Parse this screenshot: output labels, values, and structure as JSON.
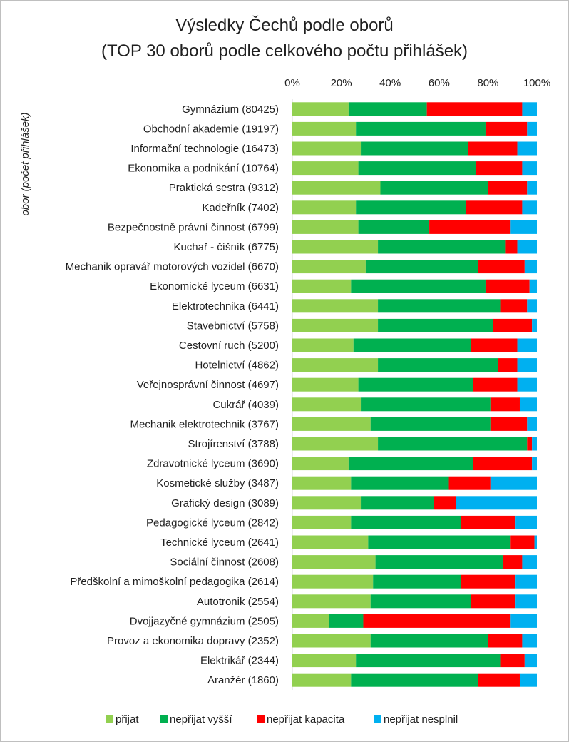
{
  "chart_data": {
    "type": "bar",
    "orientation": "horizontal",
    "stacked": "percent",
    "title_lines": [
      "Výsledky Čechů podle oborů",
      "(TOP 30 oborů podle celkového počtu přihlášek)"
    ],
    "ylabel": "obor (počet přihlášek)",
    "xlabel": "",
    "xlim": [
      0,
      100
    ],
    "x_ticks": [
      "0%",
      "20%",
      "40%",
      "60%",
      "80%",
      "100%"
    ],
    "legend_position": "bottom",
    "grid": false,
    "categories": [
      "Gymnázium (80425)",
      "Obchodní akademie (19197)",
      "Informační technologie (16473)",
      "Ekonomika a podnikání (10764)",
      "Praktická sestra (9312)",
      "Kadeřník (7402)",
      "Bezpečnostně právní činnost (6799)",
      "Kuchař - číšník (6775)",
      "Mechanik opravář motorových vozidel (6670)",
      "Ekonomické lyceum (6631)",
      "Elektrotechnika (6441)",
      "Stavebnictví (5758)",
      "Cestovní ruch (5200)",
      "Hotelnictví (4862)",
      "Veřejnosprávní činnost (4697)",
      "Cukrář (4039)",
      "Mechanik elektrotechnik (3767)",
      "Strojírenství (3788)",
      "Zdravotnické lyceum (3690)",
      "Kosmetické služby (3487)",
      "Grafický design (3089)",
      "Pedagogické lyceum (2842)",
      "Technické lyceum (2641)",
      "Sociální činnost (2608)",
      "Předškolní a mimoškolní pedagogika (2614)",
      "Autotronik (2554)",
      "Dvojjazyčné gymnázium (2505)",
      "Provoz a ekonomika dopravy (2352)",
      "Elektrikář (2344)",
      "Aranžér (1860)"
    ],
    "series": [
      {
        "name": "přijat",
        "color": "#92d050",
        "values": [
          23,
          26,
          28,
          27,
          36,
          26,
          27,
          35,
          30,
          24,
          35,
          35,
          25,
          35,
          27,
          28,
          32,
          35,
          23,
          24,
          28,
          24,
          31,
          34,
          33,
          32,
          15,
          32,
          26,
          24
        ]
      },
      {
        "name": "nepřijat vyšší",
        "color": "#00b050",
        "values": [
          32,
          53,
          44,
          48,
          44,
          45,
          29,
          52,
          46,
          55,
          50,
          47,
          48,
          49,
          47,
          53,
          49,
          61,
          51,
          40,
          30,
          45,
          58,
          52,
          36,
          41,
          14,
          48,
          59,
          52
        ]
      },
      {
        "name": "nepřijat kapacita",
        "color": "#ff0000",
        "values": [
          39,
          17,
          20,
          19,
          16,
          23,
          33,
          5,
          19,
          18,
          11,
          16,
          19,
          8,
          18,
          12,
          15,
          2,
          24,
          17,
          9,
          22,
          10,
          8,
          22,
          18,
          60,
          14,
          10,
          17
        ]
      },
      {
        "name": "nepřijat nesplnil",
        "color": "#00b0f0",
        "values": [
          6,
          4,
          8,
          6,
          4,
          6,
          11,
          8,
          5,
          3,
          4,
          2,
          8,
          8,
          8,
          7,
          4,
          2,
          2,
          19,
          33,
          9,
          1,
          6,
          9,
          9,
          11,
          6,
          5,
          7
        ]
      }
    ]
  }
}
